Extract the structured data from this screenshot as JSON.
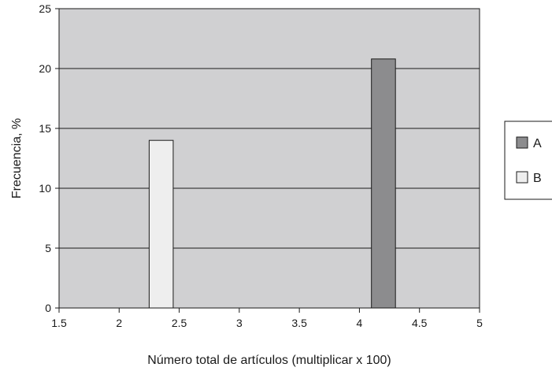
{
  "chart_data": {
    "type": "bar",
    "xlabel": "Número total de artículos (multiplicar x 100)",
    "ylabel": "Frecuencia, %",
    "xlim": [
      1.5,
      5
    ],
    "ylim": [
      0,
      25
    ],
    "x_ticks": [
      "1.5",
      "2",
      "2.5",
      "3",
      "3.5",
      "4",
      "4.5",
      "5"
    ],
    "y_ticks": [
      "0",
      "5",
      "10",
      "15",
      "20",
      "25"
    ],
    "grid": true,
    "legend_position": "right",
    "series": [
      {
        "name": "A",
        "color": "#8c8c8e",
        "bars": [
          {
            "x_start": 4.1,
            "x_end": 4.3,
            "value": 20.8
          }
        ]
      },
      {
        "name": "B",
        "color": "#eeeeee",
        "bars": [
          {
            "x_start": 2.25,
            "x_end": 2.45,
            "value": 14
          }
        ]
      }
    ],
    "plot_background": "#d0d0d2"
  }
}
